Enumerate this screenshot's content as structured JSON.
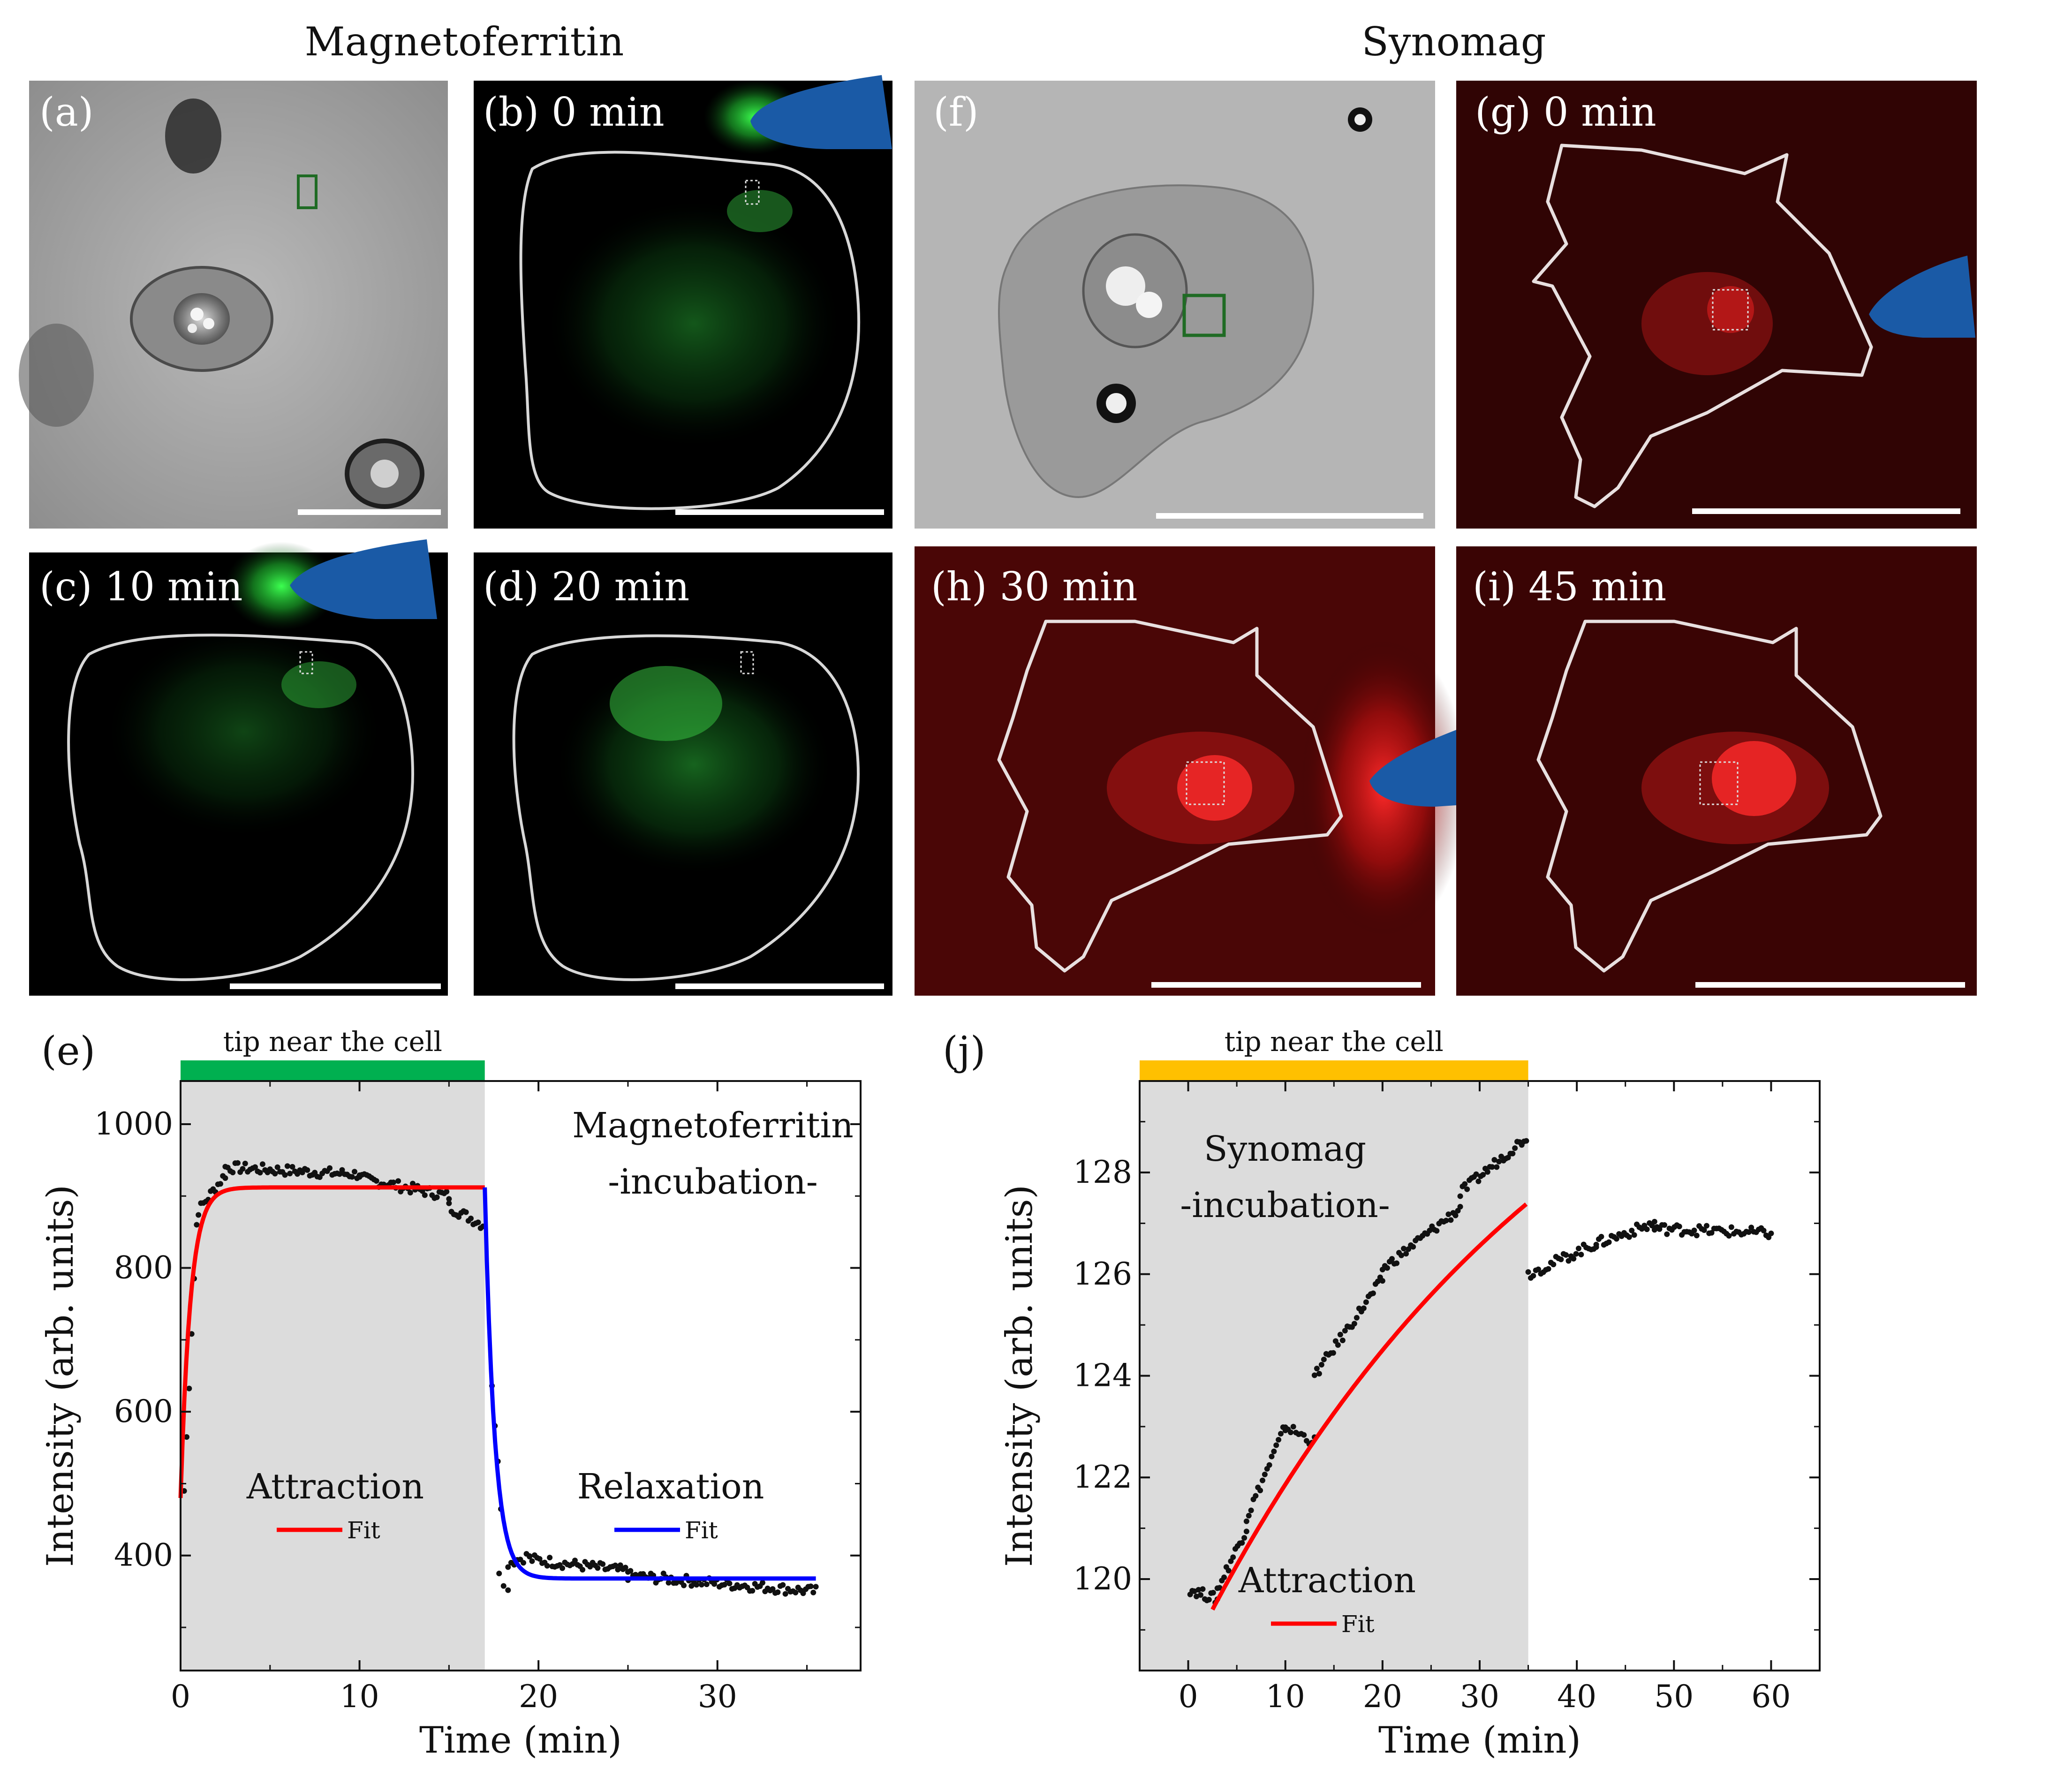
{
  "titles": {
    "left": "Magnetoferritin",
    "right": "Synomag"
  },
  "panels": {
    "a": {
      "label": "(a)"
    },
    "b": {
      "label": "(b) 0 min"
    },
    "c": {
      "label": "(c) 10 min"
    },
    "d": {
      "label": "(d) 20 min"
    },
    "f": {
      "label": "(f)"
    },
    "g": {
      "label": "(g) 0 min"
    },
    "h": {
      "label": "(h) 30 min"
    },
    "i": {
      "label": "(i) 45 min"
    }
  },
  "colors": {
    "green": "#22ff44",
    "red": "#ff2020",
    "tip": "#1a5aa6",
    "bar_green": "#00b050",
    "bar_yellow": "#ffc000",
    "fit_red": "#ff0000",
    "fit_blue": "#0000ff"
  },
  "chart_data": [
    {
      "panel": "(e)",
      "type": "scatter",
      "title": "Magnetoferritin",
      "subtitle": "-incubation-",
      "bar_label": "tip near the cell",
      "xlabel": "Time (min)",
      "ylabel": "Intensity (arb. units)",
      "xlim": [
        0,
        38
      ],
      "ylim": [
        240,
        1060
      ],
      "xticks": [
        0,
        10,
        20,
        30
      ],
      "yticks": [
        400,
        600,
        800,
        1000
      ],
      "shaded_range": [
        0,
        17
      ],
      "tip_near_range": [
        0,
        17
      ],
      "legend": [
        {
          "group": "Attraction",
          "label": "Fit",
          "color": "#ff0000"
        },
        {
          "group": "Relaxation",
          "label": "Fit",
          "color": "#0000ff"
        }
      ],
      "fits": [
        {
          "name": "Attraction fit",
          "model": "exp_rise",
          "y0": 480,
          "yinf": 912,
          "tau": 0.55,
          "t0": 0,
          "t1": 17,
          "color": "#ff0000"
        },
        {
          "name": "Relaxation fit",
          "model": "exp_decay",
          "y0": 912,
          "yinf": 368,
          "tau": 0.55,
          "t0": 17,
          "t1": 35.5,
          "color": "#0000ff"
        }
      ],
      "scatter_segments": [
        {
          "t0": 0.2,
          "t1": 0.9,
          "y0": 490,
          "y1": 860,
          "n": 6
        },
        {
          "t0": 1.0,
          "t1": 2.5,
          "y0": 880,
          "y1": 930,
          "n": 12
        },
        {
          "t0": 2.5,
          "t1": 10.0,
          "y0": 940,
          "y1": 930,
          "n": 55
        },
        {
          "t0": 10.0,
          "t1": 15.0,
          "y0": 925,
          "y1": 900,
          "n": 38
        },
        {
          "t0": 15.0,
          "t1": 16.9,
          "y0": 885,
          "y1": 860,
          "n": 15
        },
        {
          "t0": 17.4,
          "t1": 17.9,
          "y0": 640,
          "y1": 470,
          "n": 4
        },
        {
          "t0": 17.8,
          "t1": 18.3,
          "y0": 380,
          "y1": 350,
          "n": 3
        },
        {
          "t0": 18.3,
          "t1": 19.5,
          "y0": 390,
          "y1": 400,
          "n": 8
        },
        {
          "t0": 19.5,
          "t1": 25.0,
          "y0": 395,
          "y1": 378,
          "n": 40
        },
        {
          "t0": 25.0,
          "t1": 35.5,
          "y0": 372,
          "y1": 350,
          "n": 75
        }
      ]
    },
    {
      "panel": "(j)",
      "type": "scatter",
      "title": "Synomag",
      "subtitle": "-incubation-",
      "bar_label": "tip near the cell",
      "xlabel": "Time (min)",
      "ylabel": "Intensity (arb. units)",
      "xlim": [
        -5,
        65
      ],
      "ylim": [
        118.2,
        129.8
      ],
      "xticks": [
        0,
        10,
        20,
        30,
        40,
        50,
        60
      ],
      "yticks": [
        120,
        122,
        124,
        126,
        128
      ],
      "shaded_range": [
        -5,
        35
      ],
      "tip_near_range": [
        -5,
        35
      ],
      "legend": [
        {
          "group": "Attraction",
          "label": "Fit",
          "color": "#ff0000"
        }
      ],
      "fits": [
        {
          "name": "Attraction fit",
          "model": "exp_rise",
          "y0": 119.4,
          "yinf": 133.8,
          "tau": 40,
          "t0": 2.5,
          "t1": 34.8,
          "color": "#ff0000"
        }
      ],
      "scatter_segments": [
        {
          "t0": 0.2,
          "t1": 3.0,
          "y0": 119.8,
          "y1": 119.6,
          "n": 14
        },
        {
          "t0": 3.0,
          "t1": 6.0,
          "y0": 119.8,
          "y1": 121.0,
          "n": 14
        },
        {
          "t0": 6.0,
          "t1": 10.0,
          "y0": 121.2,
          "y1": 123.0,
          "n": 18
        },
        {
          "t0": 10.0,
          "t1": 13.0,
          "y0": 123.0,
          "y1": 122.7,
          "n": 12
        },
        {
          "t0": 13.0,
          "t1": 20.0,
          "y0": 124.0,
          "y1": 125.9,
          "n": 30
        },
        {
          "t0": 20.0,
          "t1": 28.0,
          "y0": 126.1,
          "y1": 127.3,
          "n": 34
        },
        {
          "t0": 28.0,
          "t1": 34.8,
          "y0": 127.6,
          "y1": 128.7,
          "n": 30
        },
        {
          "t0": 35.0,
          "t1": 42.0,
          "y0": 126.0,
          "y1": 126.6,
          "n": 28
        },
        {
          "t0": 42.0,
          "t1": 48.0,
          "y0": 126.6,
          "y1": 127.0,
          "n": 24
        },
        {
          "t0": 48.0,
          "t1": 60.0,
          "y0": 126.9,
          "y1": 126.8,
          "n": 48
        }
      ]
    }
  ]
}
